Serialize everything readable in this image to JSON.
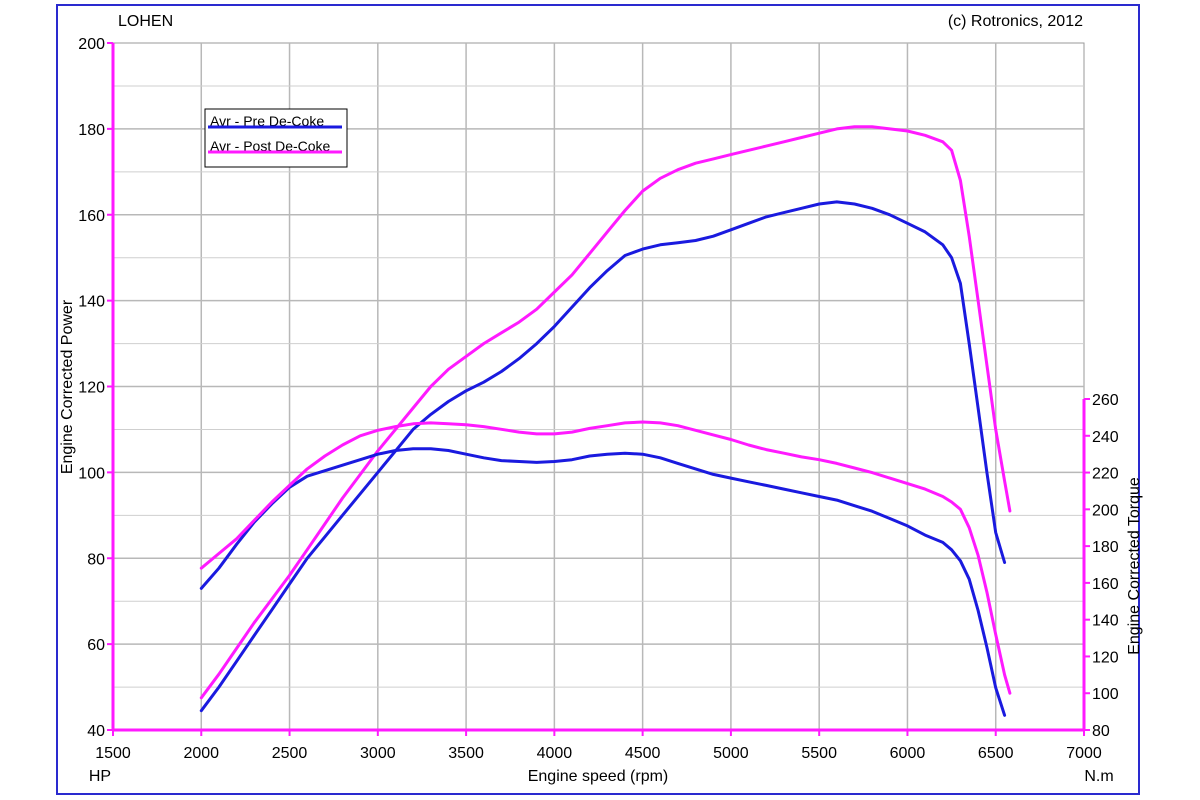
{
  "header": {
    "left": "LOHEN",
    "right": "(c) Rotronics, 2012"
  },
  "chart_data": {
    "type": "line",
    "xlabel": "Engine speed (rpm)",
    "ylabel_left": "Engine Corrected Power",
    "ylabel_right": "Engine Corrected Torque",
    "unit_left": "HP",
    "unit_right": "N.m",
    "xlim": [
      1500,
      7000
    ],
    "ylim_left": [
      40,
      200
    ],
    "ylim_right": [
      80,
      260
    ],
    "x_ticks": [
      1500,
      2000,
      2500,
      3000,
      3500,
      4000,
      4500,
      5000,
      5500,
      6000,
      6500,
      7000
    ],
    "y_ticks_left": [
      40,
      60,
      80,
      100,
      120,
      140,
      160,
      180,
      200
    ],
    "y_ticks_right": [
      80,
      100,
      120,
      140,
      160,
      180,
      200,
      220,
      240,
      260
    ],
    "grid": true,
    "legend_position": "top-left",
    "series": [
      {
        "name": "Avr - Pre De-Coke",
        "kind": "power",
        "axis": "left",
        "color": "#1a1adf",
        "x": [
          2000,
          2100,
          2200,
          2300,
          2400,
          2500,
          2600,
          2700,
          2800,
          2900,
          3000,
          3100,
          3200,
          3300,
          3400,
          3500,
          3600,
          3700,
          3800,
          3900,
          4000,
          4100,
          4200,
          4300,
          4400,
          4500,
          4600,
          4700,
          4800,
          4900,
          5000,
          5100,
          5200,
          5300,
          5400,
          5500,
          5600,
          5700,
          5800,
          5900,
          6000,
          6100,
          6200,
          6250,
          6300,
          6350,
          6400,
          6450,
          6500,
          6550
        ],
        "values": [
          44.5,
          50,
          56,
          62,
          68,
          74,
          80,
          85,
          90,
          95,
          100,
          105,
          110,
          113.5,
          116.5,
          119,
          121,
          123.5,
          126.5,
          130,
          134,
          138.5,
          143,
          147,
          150.5,
          152,
          153,
          153.5,
          154,
          155,
          156.5,
          158,
          159.5,
          160.5,
          161.5,
          162.5,
          163,
          162.5,
          161.5,
          160,
          158,
          156,
          153,
          150,
          144,
          130,
          115,
          100,
          86,
          79
        ]
      },
      {
        "name": "Avr - Post De-Coke",
        "kind": "power",
        "axis": "left",
        "color": "#ff1aff",
        "x": [
          2000,
          2100,
          2200,
          2300,
          2400,
          2500,
          2600,
          2700,
          2800,
          2900,
          3000,
          3100,
          3200,
          3300,
          3400,
          3500,
          3600,
          3700,
          3800,
          3900,
          4000,
          4100,
          4200,
          4300,
          4400,
          4500,
          4600,
          4700,
          4800,
          4900,
          5000,
          5100,
          5200,
          5300,
          5400,
          5500,
          5600,
          5700,
          5800,
          5900,
          6000,
          6100,
          6200,
          6250,
          6300,
          6350,
          6400,
          6450,
          6500,
          6550,
          6580
        ],
        "values": [
          47.5,
          53,
          59,
          65,
          70.5,
          76,
          82,
          88,
          94,
          99.5,
          105,
          110,
          115,
          120,
          124,
          127,
          130,
          132.5,
          135,
          138,
          142,
          146,
          151,
          156,
          161,
          165.5,
          168.5,
          170.5,
          172,
          173,
          174,
          175,
          176,
          177,
          178,
          179,
          180,
          180.5,
          180.5,
          180,
          179.5,
          178.5,
          177,
          175,
          168,
          155,
          140,
          125,
          110,
          98,
          91
        ]
      },
      {
        "name": "Avr - Pre De-Coke",
        "kind": "torque",
        "axis": "right",
        "color": "#1a1adf",
        "x": [
          2000,
          2100,
          2200,
          2300,
          2400,
          2500,
          2600,
          2700,
          2800,
          2900,
          3000,
          3100,
          3200,
          3300,
          3400,
          3500,
          3600,
          3700,
          3800,
          3900,
          4000,
          4100,
          4200,
          4300,
          4400,
          4500,
          4600,
          4700,
          4800,
          4900,
          5000,
          5100,
          5200,
          5300,
          5400,
          5500,
          5600,
          5700,
          5800,
          5900,
          6000,
          6100,
          6200,
          6250,
          6300,
          6350,
          6400,
          6450,
          6500,
          6550
        ],
        "values": [
          157,
          168,
          181,
          193,
          203,
          212,
          218,
          221,
          224,
          227,
          230,
          232,
          233,
          233,
          232,
          230,
          228,
          226.5,
          226,
          225.5,
          226,
          227,
          229,
          230,
          230.5,
          230,
          228,
          225,
          222,
          219,
          217,
          215,
          213,
          211,
          209,
          207,
          205,
          202,
          199,
          195,
          191,
          186,
          182,
          178,
          172,
          162,
          145,
          125,
          103,
          88
        ]
      },
      {
        "name": "Avr - Post De-Coke",
        "kind": "torque",
        "axis": "right",
        "color": "#ff1aff",
        "x": [
          2000,
          2100,
          2200,
          2300,
          2400,
          2500,
          2600,
          2700,
          2800,
          2900,
          3000,
          3100,
          3200,
          3300,
          3400,
          3500,
          3600,
          3700,
          3800,
          3900,
          4000,
          4100,
          4200,
          4300,
          4400,
          4500,
          4600,
          4700,
          4800,
          4900,
          5000,
          5100,
          5200,
          5300,
          5400,
          5500,
          5600,
          5700,
          5800,
          5900,
          6000,
          6100,
          6200,
          6250,
          6300,
          6350,
          6400,
          6450,
          6500,
          6550,
          6580
        ],
        "values": [
          168,
          176,
          184,
          194,
          204,
          213,
          222,
          229,
          235,
          240,
          243,
          245,
          246.5,
          247,
          246.5,
          246,
          245,
          243.5,
          242,
          241,
          241,
          242,
          244,
          245.5,
          247,
          247.5,
          247,
          245.5,
          243,
          240.5,
          238,
          235,
          232.5,
          230.5,
          228.5,
          227,
          225,
          222.5,
          220,
          217,
          214,
          211,
          207,
          204,
          200,
          190,
          175,
          155,
          132,
          110,
          100
        ]
      }
    ]
  }
}
